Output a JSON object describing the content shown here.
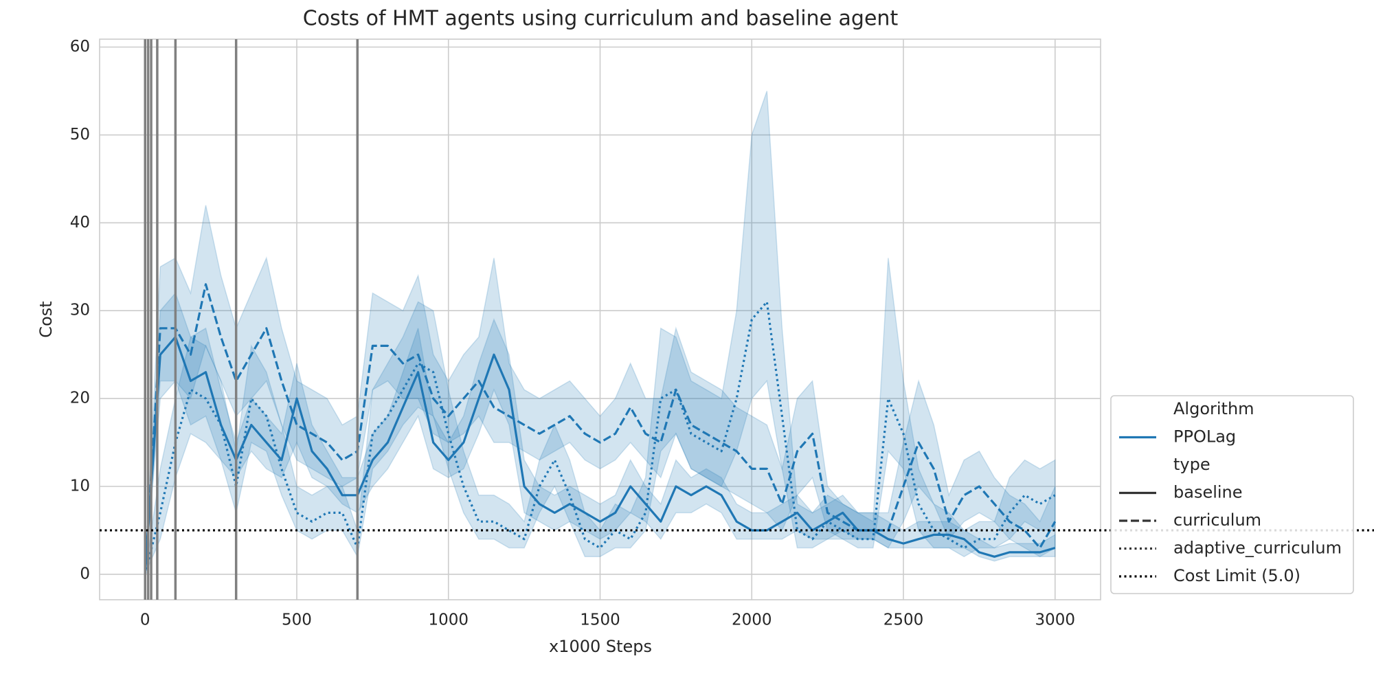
{
  "chart_data": {
    "type": "line",
    "title": "Costs of HMT agents using curriculum and baseline agent",
    "xlabel": "x1000 Steps",
    "ylabel": "Cost",
    "xlim": [
      -150,
      3150
    ],
    "ylim": [
      -2.9,
      60.9
    ],
    "xticks": [
      0,
      500,
      1000,
      1500,
      2000,
      2500,
      3000
    ],
    "yticks": [
      0,
      10,
      20,
      30,
      40,
      50,
      60
    ],
    "grid": true,
    "band_opacity": 0.2,
    "x": [
      0,
      50,
      100,
      150,
      200,
      250,
      300,
      350,
      400,
      450,
      500,
      550,
      600,
      650,
      700,
      750,
      800,
      850,
      900,
      950,
      1000,
      1050,
      1100,
      1150,
      1200,
      1250,
      1300,
      1350,
      1400,
      1450,
      1500,
      1550,
      1600,
      1650,
      1700,
      1750,
      1800,
      1850,
      1900,
      1950,
      2000,
      2050,
      2100,
      2150,
      2200,
      2250,
      2300,
      2350,
      2400,
      2450,
      2500,
      2550,
      2600,
      2650,
      2700,
      2750,
      2800,
      2850,
      2900,
      2950,
      3000
    ],
    "series": [
      {
        "name": "baseline",
        "color": "#1f77b4",
        "linestyle": "solid",
        "values": [
          0,
          25,
          27,
          22,
          23,
          17,
          13,
          17,
          15,
          13,
          20,
          14,
          12,
          9,
          9,
          13,
          15,
          19,
          23,
          15,
          13,
          15,
          20,
          25,
          21,
          10,
          8,
          7,
          8,
          7,
          6,
          7,
          10,
          8,
          6,
          10,
          9,
          10,
          9,
          6,
          5,
          5,
          6,
          7,
          5,
          6,
          7,
          5,
          5,
          4,
          3.5,
          4,
          4.5,
          4.5,
          4,
          2.5,
          2,
          2.5,
          2.5,
          2.5,
          3
        ],
        "lower": [
          0,
          20,
          22,
          17,
          18,
          13,
          11,
          14,
          12,
          11,
          15,
          11,
          10,
          8,
          7,
          10,
          12,
          15,
          18,
          12,
          11,
          12,
          16,
          21,
          17,
          7,
          6,
          5,
          6,
          5,
          4,
          5,
          7,
          6,
          4,
          7,
          7,
          8,
          7,
          4,
          4,
          4,
          4,
          5,
          4,
          4,
          5,
          4,
          4,
          3,
          3,
          3,
          3,
          3,
          3,
          2,
          1.5,
          2,
          2,
          2,
          2
        ],
        "upper": [
          0,
          30,
          32,
          27,
          28,
          21,
          15,
          20,
          18,
          16,
          24,
          17,
          14,
          11,
          11,
          16,
          18,
          23,
          28,
          18,
          15,
          18,
          24,
          29,
          25,
          13,
          10,
          9,
          10,
          9,
          8,
          9,
          13,
          10,
          8,
          13,
          11,
          12,
          11,
          8,
          7,
          7,
          8,
          9,
          7,
          8,
          9,
          7,
          7,
          6,
          5,
          6,
          6,
          6,
          5,
          4,
          3,
          3.5,
          3.5,
          3.5,
          4.5
        ]
      },
      {
        "name": "curriculum",
        "color": "#1f77b4",
        "linestyle": "dashed",
        "values": [
          0,
          28,
          28,
          25,
          33,
          27,
          22,
          25,
          28,
          22,
          17,
          16,
          15,
          13,
          14,
          26,
          26,
          24,
          25,
          20,
          18,
          20,
          22,
          19,
          18,
          17,
          16,
          17,
          18,
          16,
          15,
          16,
          19,
          16,
          15,
          21,
          17,
          16,
          15,
          14,
          12,
          12,
          8,
          14,
          16,
          7,
          6,
          5,
          5,
          5,
          10,
          15,
          12,
          6,
          9,
          10,
          8,
          6,
          5,
          3,
          6
        ],
        "lower": [
          0,
          22,
          22,
          20,
          26,
          22,
          18,
          20,
          22,
          17,
          13,
          12,
          11,
          10,
          11,
          21,
          22,
          20,
          20,
          16,
          15,
          16,
          18,
          15,
          15,
          14,
          13,
          14,
          15,
          13,
          12,
          13,
          15,
          13,
          11,
          16,
          12,
          11,
          10,
          9,
          8,
          7,
          5,
          9,
          11,
          5,
          4,
          4,
          4,
          3,
          6,
          10,
          8,
          4,
          6,
          7,
          6,
          4,
          3,
          2,
          3
        ],
        "upper": [
          0,
          35,
          36,
          32,
          42,
          34,
          28,
          32,
          36,
          28,
          22,
          21,
          20,
          17,
          18,
          32,
          31,
          30,
          34,
          25,
          22,
          25,
          27,
          36,
          24,
          21,
          20,
          21,
          22,
          20,
          18,
          20,
          24,
          20,
          20,
          28,
          23,
          22,
          21,
          19,
          18,
          17,
          12,
          20,
          22,
          10,
          8,
          7,
          7,
          7,
          15,
          22,
          17,
          9,
          13,
          14,
          11,
          9,
          8,
          6,
          10
        ]
      },
      {
        "name": "adaptive_curriculum",
        "color": "#1f77b4",
        "linestyle": "dotted",
        "values": [
          0,
          7,
          15,
          21,
          20,
          17,
          10,
          20,
          18,
          12,
          7,
          6,
          7,
          7,
          3,
          16,
          18,
          21,
          24,
          23,
          16,
          10,
          6,
          6,
          5,
          4,
          10,
          13,
          9,
          4,
          3,
          5,
          4,
          7,
          20,
          21,
          16,
          15,
          14,
          20,
          29,
          31,
          18,
          5,
          4,
          6,
          5,
          4,
          4,
          20,
          16,
          8,
          5,
          4,
          3,
          4,
          4,
          7,
          9,
          8,
          9
        ],
        "lower": [
          0,
          4,
          11,
          16,
          15,
          13,
          7,
          15,
          14,
          9,
          5,
          4,
          5,
          5,
          2,
          12,
          14,
          17,
          19,
          18,
          12,
          7,
          4,
          4,
          3,
          3,
          7,
          10,
          6,
          2,
          2,
          3,
          3,
          5,
          14,
          16,
          12,
          11,
          10,
          14,
          20,
          22,
          12,
          3,
          3,
          4,
          4,
          3,
          3,
          14,
          12,
          5,
          3,
          3,
          2,
          3,
          3,
          4,
          6,
          5,
          5
        ],
        "upper": [
          0,
          12,
          20,
          27,
          26,
          22,
          14,
          26,
          23,
          17,
          10,
          9,
          10,
          10,
          5,
          21,
          24,
          27,
          31,
          30,
          21,
          14,
          9,
          9,
          8,
          6,
          13,
          17,
          13,
          7,
          5,
          8,
          7,
          11,
          28,
          27,
          22,
          21,
          20,
          30,
          50,
          55,
          28,
          8,
          7,
          9,
          8,
          7,
          6,
          36,
          22,
          12,
          8,
          7,
          5,
          6,
          6,
          11,
          13,
          12,
          13
        ]
      }
    ],
    "vlines": {
      "values": [
        0,
        10,
        20,
        40,
        100,
        300,
        700
      ],
      "color": "#808080"
    },
    "hlines": [
      {
        "value": 5,
        "label": "Cost Limit (5.0)",
        "color": "#000000",
        "linestyle": "dotted"
      }
    ],
    "legend": {
      "hue_title": "Algorithm",
      "hue_labels": [
        "PPOLag"
      ],
      "hue_color": "#1f77b4",
      "style_title": "type",
      "style_color": "#333333"
    }
  }
}
